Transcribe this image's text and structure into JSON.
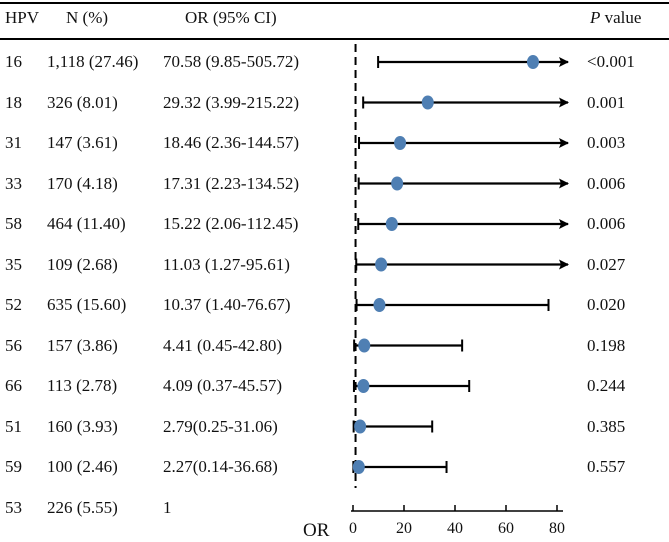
{
  "headers": {
    "hpv": "HPV",
    "n": "N (%)",
    "or": "OR (95% CI)",
    "p_italic": "P",
    "p_rest": " value"
  },
  "chart_data": {
    "type": "forest",
    "xlabel": "OR",
    "xlim": [
      0,
      80
    ],
    "xticks": [
      0,
      20,
      40,
      60,
      80
    ],
    "reference_line": 1,
    "rows": [
      {
        "hpv": "16",
        "n": "1,118 (27.46)",
        "or_text": "70.58 (9.85-505.72)",
        "p": "<0.001",
        "or": 70.58,
        "lo": 9.85,
        "hi": 505.72
      },
      {
        "hpv": "18",
        "n": "326 (8.01)",
        "or_text": "29.32 (3.99-215.22)",
        "p": "0.001",
        "or": 29.32,
        "lo": 3.99,
        "hi": 215.22
      },
      {
        "hpv": "31",
        "n": "147 (3.61)",
        "or_text": "18.46 (2.36-144.57)",
        "p": "0.003",
        "or": 18.46,
        "lo": 2.36,
        "hi": 144.57
      },
      {
        "hpv": "33",
        "n": "170 (4.18)",
        "or_text": "17.31 (2.23-134.52)",
        "p": "0.006",
        "or": 17.31,
        "lo": 2.23,
        "hi": 134.52
      },
      {
        "hpv": "58",
        "n": "464 (11.40)",
        "or_text": "15.22 (2.06-112.45)",
        "p": "0.006",
        "or": 15.22,
        "lo": 2.06,
        "hi": 112.45
      },
      {
        "hpv": "35",
        "n": "109 (2.68)",
        "or_text": "11.03 (1.27-95.61)",
        "p": "0.027",
        "or": 11.03,
        "lo": 1.27,
        "hi": 95.61
      },
      {
        "hpv": "52",
        "n": "635 (15.60)",
        "or_text": "10.37 (1.40-76.67)",
        "p": "0.020",
        "or": 10.37,
        "lo": 1.4,
        "hi": 76.67
      },
      {
        "hpv": "56",
        "n": "157 (3.86)",
        "or_text": "4.41 (0.45-42.80)",
        "p": "0.198",
        "or": 4.41,
        "lo": 0.45,
        "hi": 42.8
      },
      {
        "hpv": "66",
        "n": "113 (2.78)",
        "or_text": "4.09 (0.37-45.57)",
        "p": "0.244",
        "or": 4.09,
        "lo": 0.37,
        "hi": 45.57
      },
      {
        "hpv": "51",
        "n": "160 (3.93)",
        "or_text": "2.79(0.25-31.06)",
        "p": "0.385",
        "or": 2.79,
        "lo": 0.25,
        "hi": 31.06
      },
      {
        "hpv": "59",
        "n": "100 (2.46)",
        "or_text": "2.27(0.14-36.68)",
        "p": "0.557",
        "or": 2.27,
        "lo": 0.14,
        "hi": 36.68
      },
      {
        "hpv": "53",
        "n": "226 (5.55)",
        "or_text": "1",
        "p": "",
        "or": null,
        "lo": null,
        "hi": null
      }
    ]
  },
  "colors": {
    "marker": "#4f7fb3",
    "line": "#000000"
  }
}
